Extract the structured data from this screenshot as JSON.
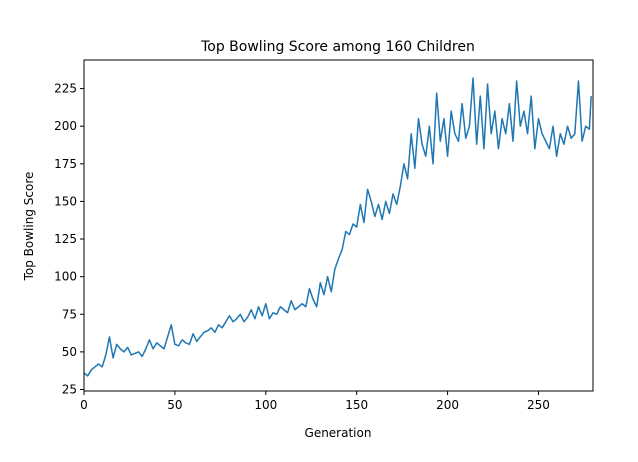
{
  "chart_data": {
    "type": "line",
    "title": "Top Bowling Score among 160 Children",
    "x_label": "Generation",
    "y_label": "Top Bowling Score",
    "x": [
      0,
      2,
      4,
      6,
      8,
      10,
      12,
      14,
      16,
      18,
      20,
      22,
      24,
      26,
      28,
      30,
      32,
      34,
      36,
      38,
      40,
      42,
      44,
      46,
      48,
      50,
      52,
      54,
      56,
      58,
      60,
      62,
      64,
      66,
      68,
      70,
      72,
      74,
      76,
      78,
      80,
      82,
      84,
      86,
      88,
      90,
      92,
      94,
      96,
      98,
      100,
      102,
      104,
      106,
      108,
      110,
      112,
      114,
      116,
      118,
      120,
      122,
      124,
      126,
      128,
      130,
      132,
      134,
      136,
      138,
      140,
      142,
      144,
      146,
      148,
      150,
      152,
      154,
      156,
      158,
      160,
      162,
      164,
      166,
      168,
      170,
      172,
      174,
      176,
      178,
      180,
      182,
      184,
      186,
      188,
      190,
      192,
      194,
      196,
      198,
      200,
      202,
      204,
      206,
      208,
      210,
      212,
      214,
      216,
      218,
      220,
      222,
      224,
      226,
      228,
      230,
      232,
      234,
      236,
      238,
      240,
      242,
      244,
      246,
      248,
      250,
      252,
      254,
      256,
      258,
      260,
      262,
      264,
      266,
      268,
      270,
      272,
      274,
      276,
      278,
      279
    ],
    "series": [
      {
        "name": "Top Bowling Score",
        "color": "#1f77b4",
        "values": [
          36,
          34,
          38,
          40,
          42,
          40,
          48,
          60,
          46,
          55,
          52,
          50,
          53,
          48,
          49,
          50,
          47,
          52,
          58,
          52,
          56,
          54,
          52,
          60,
          68,
          55,
          54,
          58,
          56,
          55,
          62,
          57,
          60,
          63,
          64,
          66,
          63,
          68,
          66,
          70,
          74,
          70,
          72,
          75,
          70,
          73,
          78,
          72,
          80,
          74,
          82,
          72,
          76,
          75,
          80,
          78,
          76,
          84,
          78,
          80,
          82,
          80,
          92,
          85,
          80,
          96,
          88,
          100,
          90,
          105,
          112,
          118,
          130,
          128,
          135,
          133,
          148,
          136,
          158,
          150,
          140,
          148,
          138,
          150,
          142,
          155,
          148,
          160,
          175,
          165,
          195,
          172,
          205,
          188,
          180,
          200,
          175,
          222,
          190,
          205,
          180,
          210,
          195,
          190,
          215,
          192,
          200,
          232,
          188,
          220,
          185,
          228,
          195,
          210,
          185,
          205,
          195,
          215,
          190,
          230,
          200,
          210,
          195,
          220,
          185,
          205,
          195,
          190,
          185,
          200,
          180,
          195,
          188,
          200,
          192,
          195,
          230,
          190,
          200,
          198,
          220
        ]
      }
    ],
    "xlim": [
      0,
      280
    ],
    "ylim": [
      24,
      244
    ],
    "xticks": [
      0,
      50,
      100,
      150,
      200,
      250
    ],
    "yticks": [
      25,
      50,
      75,
      100,
      125,
      150,
      175,
      200,
      225
    ],
    "grid": false
  }
}
